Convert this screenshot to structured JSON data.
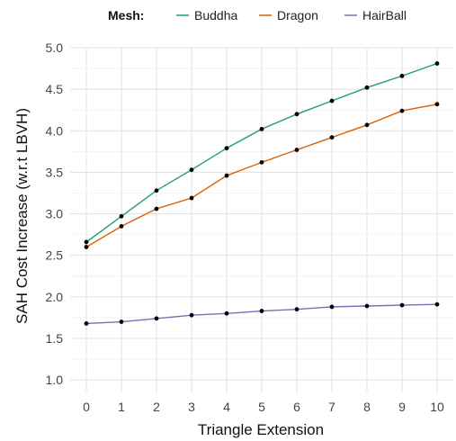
{
  "chart_data": {
    "type": "line",
    "legend": {
      "title": "Mesh:",
      "placement": "top"
    },
    "xlabel": "Triangle Extension",
    "ylabel": "SAH Cost Increase (w.r.t LBVH)",
    "x": [
      0,
      1,
      2,
      3,
      4,
      5,
      6,
      7,
      8,
      9,
      10
    ],
    "xlim": [
      0,
      10
    ],
    "ylim": [
      0.85,
      5.0
    ],
    "yticks": [
      1.0,
      1.5,
      2.0,
      2.5,
      3.0,
      3.5,
      4.0,
      4.5,
      5.0
    ],
    "grid": true,
    "series": [
      {
        "name": "Buddha",
        "color": "#1b9e77",
        "values": [
          2.66,
          2.97,
          3.28,
          3.53,
          3.79,
          4.02,
          4.2,
          4.36,
          4.52,
          4.66,
          4.81
        ]
      },
      {
        "name": "Dragon",
        "color": "#d95f02",
        "values": [
          2.6,
          2.85,
          3.06,
          3.19,
          3.46,
          3.62,
          3.77,
          3.92,
          4.07,
          4.24,
          4.32
        ]
      },
      {
        "name": "HairBall",
        "color": "#7570b3",
        "values": [
          1.68,
          1.7,
          1.74,
          1.78,
          1.8,
          1.83,
          1.85,
          1.88,
          1.89,
          1.9,
          1.91
        ]
      }
    ]
  }
}
